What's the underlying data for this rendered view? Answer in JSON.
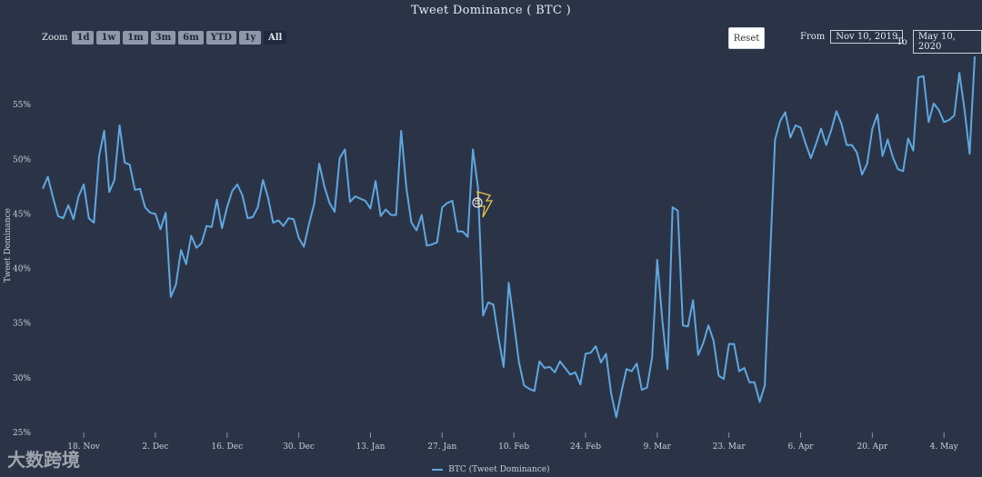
{
  "toolbar": {
    "zoom_label": "Zoom",
    "zoom_buttons": [
      "1d",
      "1w",
      "1m",
      "3m",
      "6m",
      "YTD",
      "1y",
      "All"
    ],
    "reset_label": "Reset",
    "from_label": "From",
    "from_value": "Nov 10, 2019",
    "to_label": "To",
    "to_value": "May 10, 2020"
  },
  "watermark": "大数跨境",
  "chart_data": {
    "type": "line",
    "title": "Tweet Dominance ( BTC )",
    "ylabel": "Tweet Dominance",
    "xlabel": "",
    "ylim": [
      25,
      60
    ],
    "yticks": [
      "25%",
      "30%",
      "35%",
      "40%",
      "45%",
      "50%",
      "55%"
    ],
    "ytick_values": [
      25,
      30,
      35,
      40,
      45,
      50,
      55
    ],
    "xticks": [
      "18. Nov",
      "2. Dec",
      "16. Dec",
      "30. Dec",
      "13. Jan",
      "27. Jan",
      "10. Feb",
      "24. Feb",
      "9. Mar",
      "23. Mar",
      "6. Apr",
      "20. Apr",
      "4. May"
    ],
    "xtick_days": [
      8,
      22,
      36,
      50,
      64,
      78,
      92,
      106,
      120,
      134,
      148,
      162,
      176
    ],
    "x_range_days": [
      0,
      182
    ],
    "series": [
      {
        "name": "BTC (Tweet Dominance)",
        "color": "#5fa7e0",
        "values": [
          47.3,
          48.4,
          46.5,
          44.8,
          44.6,
          45.8,
          44.5,
          46.6,
          47.7,
          44.6,
          44.2,
          50.3,
          52.6,
          47.0,
          48.1,
          53.1,
          49.7,
          49.5,
          47.2,
          47.3,
          45.6,
          45.1,
          45.0,
          43.6,
          45.1,
          37.4,
          38.5,
          41.7,
          40.4,
          43.0,
          41.9,
          42.3,
          43.9,
          43.8,
          46.3,
          43.7,
          45.6,
          47.1,
          47.7,
          46.7,
          44.6,
          44.7,
          45.6,
          48.1,
          46.5,
          44.2,
          44.4,
          43.9,
          44.6,
          44.5,
          42.8,
          42.0,
          44.1,
          45.9,
          49.6,
          47.5,
          46.0,
          45.2,
          50.1,
          50.9,
          46.1,
          46.6,
          46.4,
          46.2,
          45.5,
          48.0,
          44.8,
          45.4,
          44.9,
          44.9,
          52.6,
          47.4,
          44.2,
          43.5,
          44.9,
          42.1,
          42.2,
          42.4,
          45.6,
          46.0,
          46.2,
          43.4,
          43.4,
          42.9,
          50.9,
          47.4,
          35.7,
          36.9,
          36.7,
          33.7,
          31.0,
          38.7,
          35.1,
          31.4,
          29.3,
          29.0,
          28.8,
          31.5,
          30.9,
          31.0,
          30.5,
          31.5,
          30.9,
          30.3,
          30.5,
          29.4,
          32.2,
          32.3,
          32.9,
          31.4,
          32.2,
          28.6,
          26.4,
          28.7,
          30.8,
          30.6,
          31.3,
          28.9,
          29.1,
          31.9,
          40.8,
          35.2,
          30.8,
          45.6,
          45.3,
          34.8,
          34.7,
          37.1,
          32.1,
          33.2,
          34.8,
          33.4,
          30.2,
          29.9,
          33.1,
          33.1,
          30.6,
          30.9,
          29.6,
          29.6,
          27.8,
          29.3,
          40.6,
          51.8,
          53.5,
          54.3,
          52.0,
          53.1,
          52.9,
          51.4,
          50.1,
          51.4,
          52.8,
          51.3,
          52.7,
          54.4,
          53.2,
          51.3,
          51.3,
          50.6,
          48.6,
          49.6,
          52.8,
          54.1,
          50.3,
          51.8,
          50.2,
          49.1,
          48.9,
          51.9,
          50.8,
          57.5,
          57.6,
          53.4,
          55.1,
          54.5,
          53.4,
          53.6,
          54.0,
          57.9,
          54.6,
          50.5,
          59.4
        ]
      }
    ],
    "legend_position": "bottom-center"
  }
}
